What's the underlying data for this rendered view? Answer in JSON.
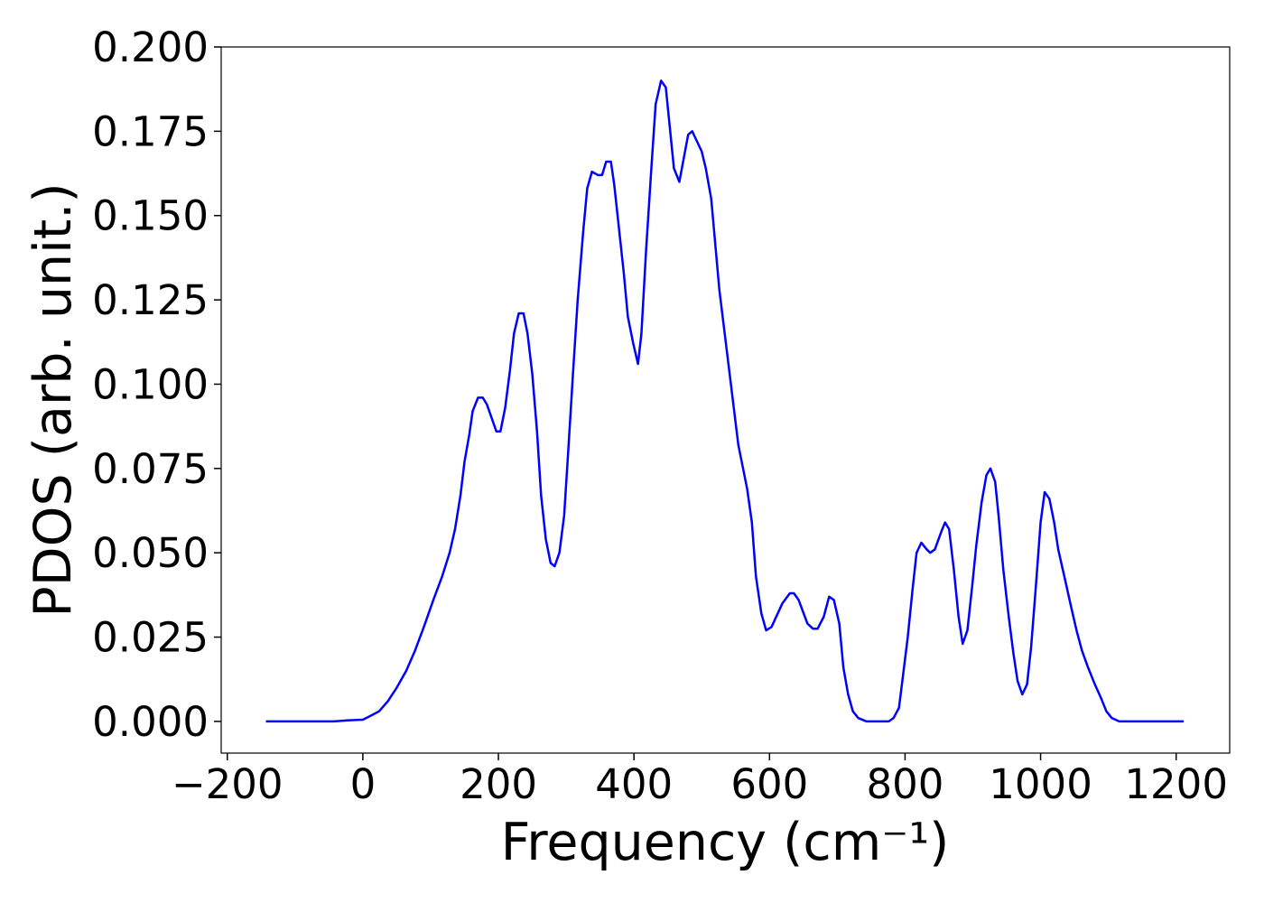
{
  "chart_data": {
    "type": "line",
    "xlabel": "Frequency (cm⁻¹)",
    "ylabel": "PDOS (arb. unit.)",
    "x": [
      -143,
      -89,
      -43,
      -23,
      0,
      10,
      24,
      37,
      50,
      64,
      77,
      90,
      104,
      117,
      128,
      136,
      144,
      150,
      157,
      162,
      170,
      177,
      183,
      190,
      197,
      203,
      210,
      217,
      223,
      230,
      237,
      243,
      250,
      257,
      263,
      270,
      277,
      283,
      290,
      297,
      303,
      310,
      317,
      325,
      331,
      338,
      347,
      353,
      359,
      366,
      371,
      378,
      385,
      391,
      399,
      406,
      411,
      418,
      426,
      432,
      440,
      447,
      459,
      467,
      480,
      486,
      500,
      506,
      514,
      526,
      540,
      554,
      567,
      574,
      580,
      588,
      595,
      603,
      619,
      630,
      636,
      643,
      656,
      664,
      671,
      680,
      688,
      695,
      703,
      709,
      716,
      723,
      731,
      743,
      776,
      783,
      791,
      796,
      804,
      811,
      817,
      824,
      832,
      837,
      844,
      853,
      859,
      865,
      872,
      879,
      885,
      892,
      899,
      905,
      913,
      920,
      926,
      933,
      938,
      945,
      953,
      960,
      966,
      973,
      980,
      986,
      993,
      1000,
      1006,
      1013,
      1020,
      1026,
      1035,
      1045,
      1053,
      1061,
      1070,
      1080,
      1089,
      1097,
      1105,
      1116,
      1211
    ],
    "series": [
      {
        "color": "#0000ff",
        "values": [
          0,
          0,
          0,
          0.0003,
          0.0005,
          0.0015,
          0.003,
          0.006,
          0.01,
          0.015,
          0.021,
          0.028,
          0.036,
          0.043,
          0.05,
          0.057,
          0.067,
          0.077,
          0.085,
          0.092,
          0.096,
          0.096,
          0.094,
          0.09,
          0.086,
          0.086,
          0.093,
          0.104,
          0.115,
          0.121,
          0.121,
          0.115,
          0.103,
          0.086,
          0.067,
          0.054,
          0.047,
          0.046,
          0.05,
          0.061,
          0.08,
          0.103,
          0.125,
          0.145,
          0.158,
          0.163,
          0.162,
          0.162,
          0.166,
          0.166,
          0.159,
          0.146,
          0.133,
          0.12,
          0.112,
          0.106,
          0.115,
          0.14,
          0.165,
          0.183,
          0.19,
          0.188,
          0.164,
          0.16,
          0.174,
          0.175,
          0.169,
          0.164,
          0.155,
          0.128,
          0.105,
          0.082,
          0.069,
          0.059,
          0.043,
          0.032,
          0.027,
          0.028,
          0.035,
          0.038,
          0.038,
          0.036,
          0.029,
          0.0275,
          0.0275,
          0.031,
          0.037,
          0.036,
          0.029,
          0.016,
          0.008,
          0.003,
          0.001,
          0,
          0,
          0.001,
          0.004,
          0.012,
          0.025,
          0.039,
          0.05,
          0.053,
          0.051,
          0.05,
          0.051,
          0.056,
          0.059,
          0.057,
          0.045,
          0.031,
          0.023,
          0.027,
          0.04,
          0.052,
          0.065,
          0.073,
          0.075,
          0.071,
          0.061,
          0.045,
          0.031,
          0.02,
          0.012,
          0.008,
          0.011,
          0.022,
          0.04,
          0.059,
          0.068,
          0.066,
          0.059,
          0.051,
          0.043,
          0.034,
          0.027,
          0.021,
          0.016,
          0.011,
          0.007,
          0.003,
          0.001,
          0,
          0
        ]
      }
    ],
    "xlim": [
      -209,
      1279
    ],
    "ylim": [
      -0.0094,
      0.2
    ],
    "xticks": [
      {
        "value": -200,
        "label": "−200"
      },
      0,
      200,
      400,
      600,
      800,
      1000,
      1200
    ],
    "yticks": [
      {
        "value": 0,
        "label": "0.000"
      },
      {
        "value": 0.025,
        "label": "0.025"
      },
      {
        "value": 0.05,
        "label": "0.050"
      },
      {
        "value": 0.075,
        "label": "0.075"
      },
      {
        "value": 0.1,
        "label": "0.100"
      },
      {
        "value": 0.125,
        "label": "0.125"
      },
      {
        "value": 0.15,
        "label": "0.150"
      },
      {
        "value": 0.175,
        "label": "0.175"
      },
      {
        "value": 0.2,
        "label": "0.200"
      }
    ],
    "grid": false
  }
}
